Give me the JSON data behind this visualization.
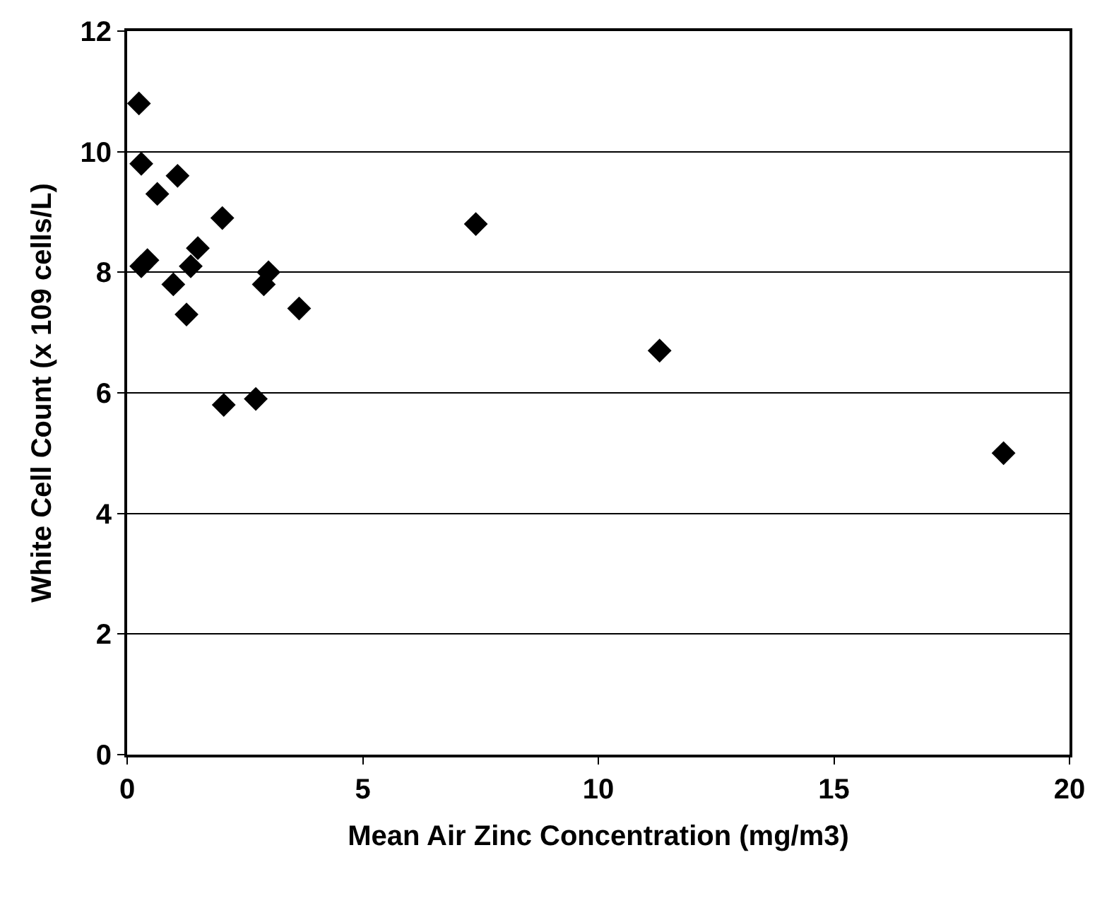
{
  "chart_data": {
    "type": "scatter",
    "xlabel": "Mean Air Zinc Concentration (mg/m3)",
    "ylabel": "White Cell Count (x 109 cells/L)",
    "x": [
      0.25,
      0.3,
      1.07,
      0.64,
      2.02,
      1.5,
      0.43,
      0.3,
      1.35,
      3.0,
      2.9,
      0.98,
      1.26,
      3.65,
      2.05,
      2.73,
      7.4,
      11.3,
      18.6
    ],
    "series": [
      {
        "color": "#000000",
        "values": [
          10.8,
          9.8,
          9.6,
          9.3,
          8.9,
          8.4,
          8.2,
          8.1,
          8.1,
          8.0,
          7.8,
          7.8,
          7.3,
          7.4,
          5.8,
          5.9,
          8.8,
          6.7,
          5.0
        ]
      }
    ],
    "xlim": [
      0,
      20
    ],
    "xticks": [
      0,
      5,
      10,
      15,
      20
    ],
    "ylim": [
      0,
      12
    ],
    "yticks": [
      0,
      2,
      4,
      6,
      8,
      10,
      12
    ],
    "grid": "y",
    "marker": "diamond"
  }
}
